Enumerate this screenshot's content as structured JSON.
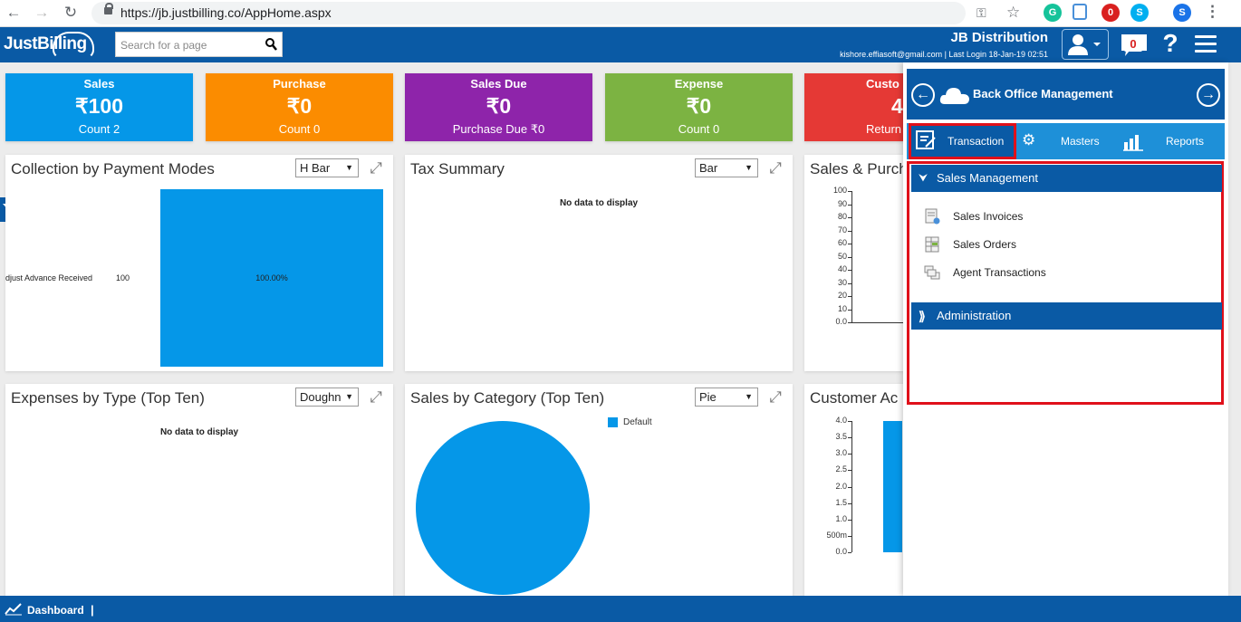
{
  "browser": {
    "url": "https://jb.justbilling.co/AppHome.aspx",
    "ext_badges": [
      "0",
      "S"
    ]
  },
  "header": {
    "logo": "JustBilling",
    "search_placeholder": "Search for a page",
    "company": "JB Distribution",
    "user_info": "kishore.effiasoft@gmail.com | Last Login 18-Jan-19 02:51",
    "notification_count": "0",
    "help_label": "?"
  },
  "kpis": [
    {
      "title": "Sales",
      "value": "₹100",
      "sub": "Count 2",
      "color": "#0597e8"
    },
    {
      "title": "Purchase",
      "value": "₹0",
      "sub": "Count 0",
      "color": "#fb8c00"
    },
    {
      "title": "Sales Due",
      "value": "₹0",
      "sub": "Purchase Due ₹0",
      "color": "#8e24aa"
    },
    {
      "title": "Expense",
      "value": "₹0",
      "sub": "Count 0",
      "color": "#7cb342"
    },
    {
      "title": "Custo",
      "value": "4",
      "sub": "Return",
      "color": "#e53935"
    }
  ],
  "panels": {
    "collection": {
      "title": "Collection by Payment Modes",
      "select": "H Bar",
      "chart_data": {
        "type": "bar",
        "orientation": "horizontal",
        "categories": [
          "Adjust Advance Received"
        ],
        "values": [
          100
        ],
        "value_labels": [
          "100"
        ],
        "percent_labels": [
          "100.00%"
        ],
        "color": "#0597e8"
      }
    },
    "tax": {
      "title": "Tax Summary",
      "select": "Bar",
      "nodata": "No data to display"
    },
    "salespurchase": {
      "title": "Sales & Purch",
      "chart_data": {
        "type": "line",
        "yticks": [
          "100",
          "90",
          "80",
          "70",
          "60",
          "50",
          "40",
          "30",
          "20",
          "10",
          "0.0"
        ]
      }
    },
    "expenses": {
      "title": "Expenses by Type (Top Ten)",
      "select": "Doughn",
      "nodata": "No data to display"
    },
    "category": {
      "title": "Sales by Category (Top Ten)",
      "select": "Pie",
      "chart_data": {
        "type": "pie",
        "categories": [
          "Default"
        ],
        "values": [
          100
        ],
        "colors": [
          "#0597e8"
        ]
      }
    },
    "customer": {
      "title": "Customer Ac",
      "chart_data": {
        "type": "bar",
        "yticks": [
          "4.0",
          "3.5",
          "3.0",
          "2.5",
          "2.0",
          "1.5",
          "1.0",
          "500m",
          "0.0"
        ],
        "ylim": [
          0,
          4
        ],
        "values": [
          4
        ]
      }
    }
  },
  "side_panel": {
    "title": "Back Office Management",
    "tabs": {
      "transaction": "Transaction",
      "masters": "Masters",
      "reports": "Reports"
    },
    "sections": {
      "sales": {
        "label": "Sales Management",
        "items": [
          "Sales Invoices",
          "Sales Orders",
          "Agent Transactions"
        ]
      },
      "admin": {
        "label": "Administration"
      }
    }
  },
  "footer": {
    "label": "Dashboard",
    "separator": "|"
  }
}
